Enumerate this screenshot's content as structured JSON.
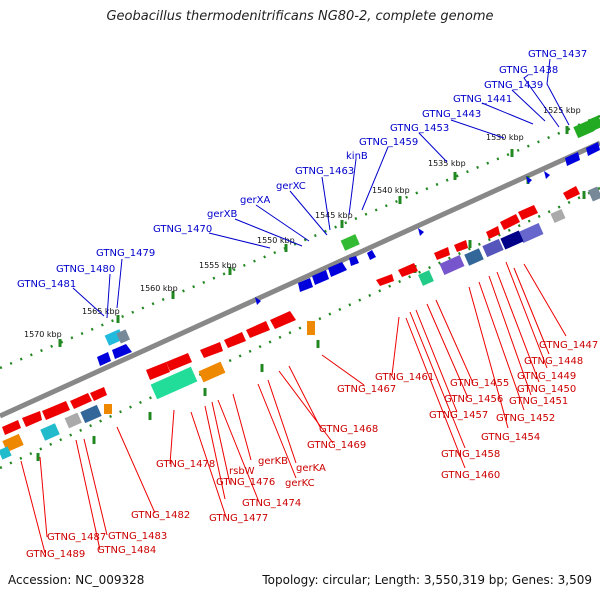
{
  "title": "Geobacillus thermodenitrificans NG80-2, complete genome",
  "footer": {
    "accession": "Accession: NC_009328",
    "stats": "Topology: circular; Length: 3,550,319 bp; Genes: 3,509"
  },
  "scale_labels": [
    "1525 kbp",
    "1530 kbp",
    "1535 kbp",
    "1540 kbp",
    "1545 kbp",
    "1550 kbp",
    "1555 kbp",
    "1560 kbp",
    "1565 kbp",
    "1570 kbp"
  ],
  "top_labels": [
    "GTNG_1437",
    "GTNG_1438",
    "GTNG_1439",
    "GTNG_1441",
    "GTNG_1443",
    "GTNG_1453",
    "GTNG_1459",
    "kinB",
    "GTNG_1463",
    "gerXC",
    "gerXA",
    "gerXB",
    "GTNG_1470",
    "GTNG_1479",
    "GTNG_1480",
    "GTNG_1481"
  ],
  "bottom_labels_right": [
    "GTNG_1447",
    "GTNG_1448",
    "GTNG_1449",
    "GTNG_1450",
    "GTNG_1451",
    "GTNG_1452",
    "GTNG_1454",
    "GTNG_1455",
    "GTNG_1456",
    "GTNG_1457",
    "GTNG_1458",
    "GTNG_1460",
    "GTNG_1461",
    "GTNG_1467"
  ],
  "bottom_labels_left": [
    "GTNG_1468",
    "GTNG_1469",
    "gerKA",
    "gerKC",
    "gerKB",
    "GTNG_1474",
    "rsbW",
    "GTNG_1476",
    "GTNG_1477",
    "GTNG_1478",
    "GTNG_1482",
    "GTNG_1483",
    "GTNG_1484",
    "GTNG_1487",
    "GTNG_1489"
  ],
  "colors": {
    "forward_label": "#0000cc",
    "reverse_label": "#cc0000",
    "forward_gene": "#0000dd",
    "reverse_gene": "#ee0000",
    "backbone": "#888888",
    "ticks": "#228822"
  }
}
